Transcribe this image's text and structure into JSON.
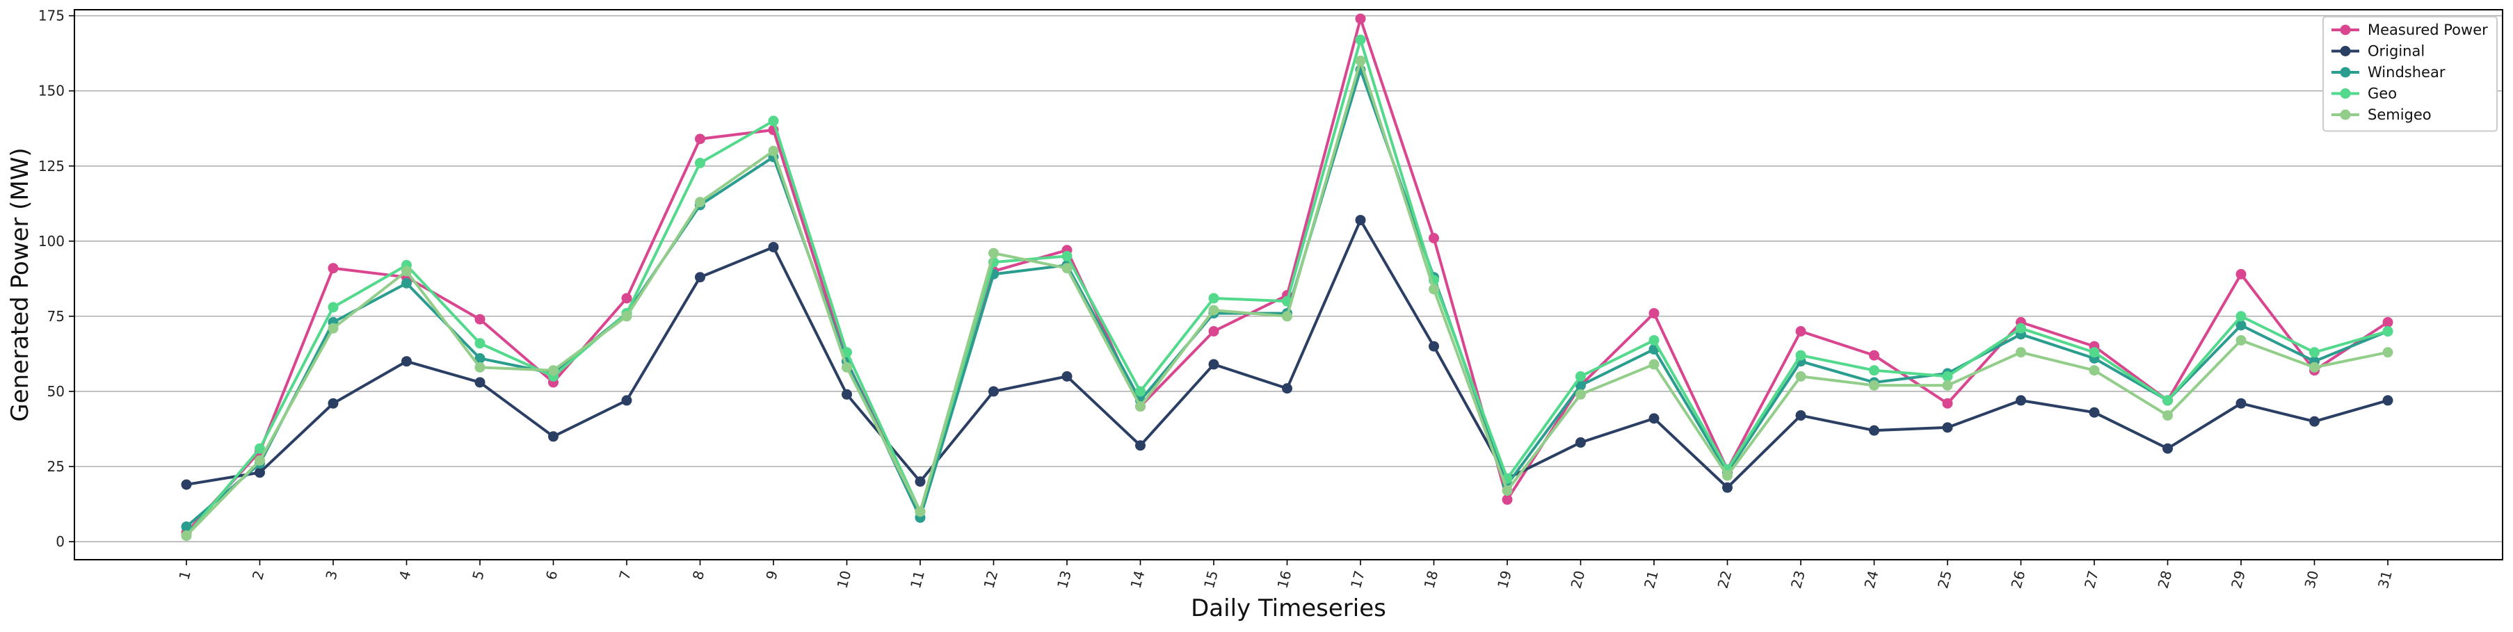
{
  "chart_data": {
    "type": "line",
    "title": "",
    "xlabel": "Daily Timeseries",
    "ylabel": "Generated Power (MW)",
    "categories": [
      "1",
      "2",
      "3",
      "4",
      "5",
      "6",
      "7",
      "8",
      "9",
      "10",
      "11",
      "12",
      "13",
      "14",
      "15",
      "16",
      "17",
      "18",
      "19",
      "20",
      "21",
      "22",
      "23",
      "24",
      "25",
      "26",
      "27",
      "28",
      "29",
      "30",
      "31"
    ],
    "ylim": [
      -6,
      177
    ],
    "yticks": [
      0,
      25,
      50,
      75,
      100,
      125,
      150,
      175
    ],
    "grid": "horizontal",
    "legend_position": "top-right",
    "series": [
      {
        "name": "Measured Power",
        "color": "#d9468f",
        "values": [
          3,
          30,
          91,
          88,
          74,
          53,
          81,
          134,
          137,
          60,
          10,
          90,
          97,
          45,
          70,
          82,
          174,
          101,
          14,
          52,
          76,
          24,
          70,
          62,
          46,
          73,
          65,
          47,
          89,
          57,
          73
        ]
      },
      {
        "name": "Original",
        "color": "#2a3f63",
        "values": [
          19,
          23,
          46,
          60,
          53,
          35,
          47,
          88,
          98,
          49,
          20,
          50,
          55,
          32,
          59,
          51,
          107,
          65,
          21,
          33,
          41,
          18,
          42,
          37,
          38,
          47,
          43,
          31,
          46,
          40,
          47
        ]
      },
      {
        "name": "Windshear",
        "color": "#2a9d8f",
        "values": [
          5,
          26,
          73,
          86,
          61,
          56,
          76,
          112,
          128,
          60,
          8,
          89,
          92,
          47,
          76,
          76,
          157,
          88,
          19,
          52,
          64,
          23,
          60,
          53,
          56,
          69,
          61,
          47,
          72,
          60,
          70
        ]
      },
      {
        "name": "Geo",
        "color": "#52d98c",
        "values": [
          2,
          31,
          78,
          92,
          66,
          55,
          76,
          126,
          140,
          63,
          10,
          93,
          95,
          50,
          81,
          80,
          167,
          87,
          21,
          55,
          67,
          24,
          62,
          57,
          55,
          71,
          63,
          47,
          75,
          63,
          70
        ]
      },
      {
        "name": "Semigeo",
        "color": "#92ce8a",
        "values": [
          2,
          27,
          71,
          90,
          58,
          57,
          75,
          113,
          130,
          58,
          10,
          96,
          91,
          45,
          77,
          75,
          160,
          84,
          17,
          49,
          59,
          22,
          55,
          52,
          52,
          63,
          57,
          42,
          67,
          58,
          63
        ]
      }
    ]
  }
}
